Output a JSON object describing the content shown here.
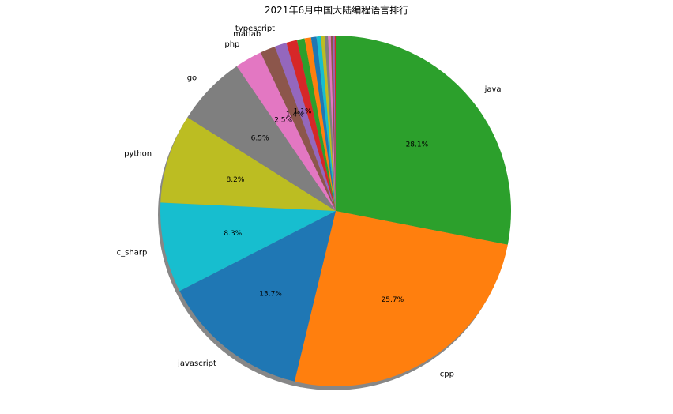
{
  "chart_data": {
    "type": "pie",
    "title": "2021年6月中国大陆编程语言排行",
    "series": [
      {
        "label": "java",
        "value": 28.1,
        "pct_label": "28.1%",
        "color": "#2ca02c"
      },
      {
        "label": "cpp",
        "value": 25.7,
        "pct_label": "25.7%",
        "color": "#ff7f0e"
      },
      {
        "label": "javascript",
        "value": 13.7,
        "pct_label": "13.7%",
        "color": "#1f77b4"
      },
      {
        "label": "c_sharp",
        "value": 8.3,
        "pct_label": "8.3%",
        "color": "#17becf"
      },
      {
        "label": "python",
        "value": 8.2,
        "pct_label": "8.2%",
        "color": "#bcbd22"
      },
      {
        "label": "go",
        "value": 6.5,
        "pct_label": "6.5%",
        "color": "#7f7f7f"
      },
      {
        "label": "php",
        "value": 2.5,
        "pct_label": "2.5%",
        "color": "#e377c2"
      },
      {
        "label": "matlab",
        "value": 1.4,
        "pct_label": "1.4%",
        "color": "#8c564b"
      },
      {
        "label": "typescript",
        "value": 1.1,
        "pct_label": "1.1%",
        "color": "#9467bd"
      },
      {
        "label": "",
        "value": 1.0,
        "pct_label": "",
        "color": "#d62728"
      },
      {
        "label": "",
        "value": 0.7,
        "pct_label": "",
        "color": "#2ca02c"
      },
      {
        "label": "",
        "value": 0.6,
        "pct_label": "",
        "color": "#ff7f0e"
      },
      {
        "label": "",
        "value": 0.5,
        "pct_label": "",
        "color": "#1f77b4"
      },
      {
        "label": "",
        "value": 0.4,
        "pct_label": "",
        "color": "#17becf"
      },
      {
        "label": "",
        "value": 0.35,
        "pct_label": "",
        "color": "#bcbd22"
      },
      {
        "label": "",
        "value": 0.3,
        "pct_label": "",
        "color": "#7f7f7f"
      },
      {
        "label": "",
        "value": 0.25,
        "pct_label": "",
        "color": "#e377c2"
      },
      {
        "label": "",
        "value": 0.2,
        "pct_label": "",
        "color": "#8c564b"
      },
      {
        "label": "",
        "value": 0.15,
        "pct_label": "",
        "color": "#9467bd"
      },
      {
        "label": "",
        "value": 0.1,
        "pct_label": "",
        "color": "#d62728"
      }
    ],
    "start_angle_deg": 90,
    "direction": "clockwise",
    "shadow": true
  }
}
